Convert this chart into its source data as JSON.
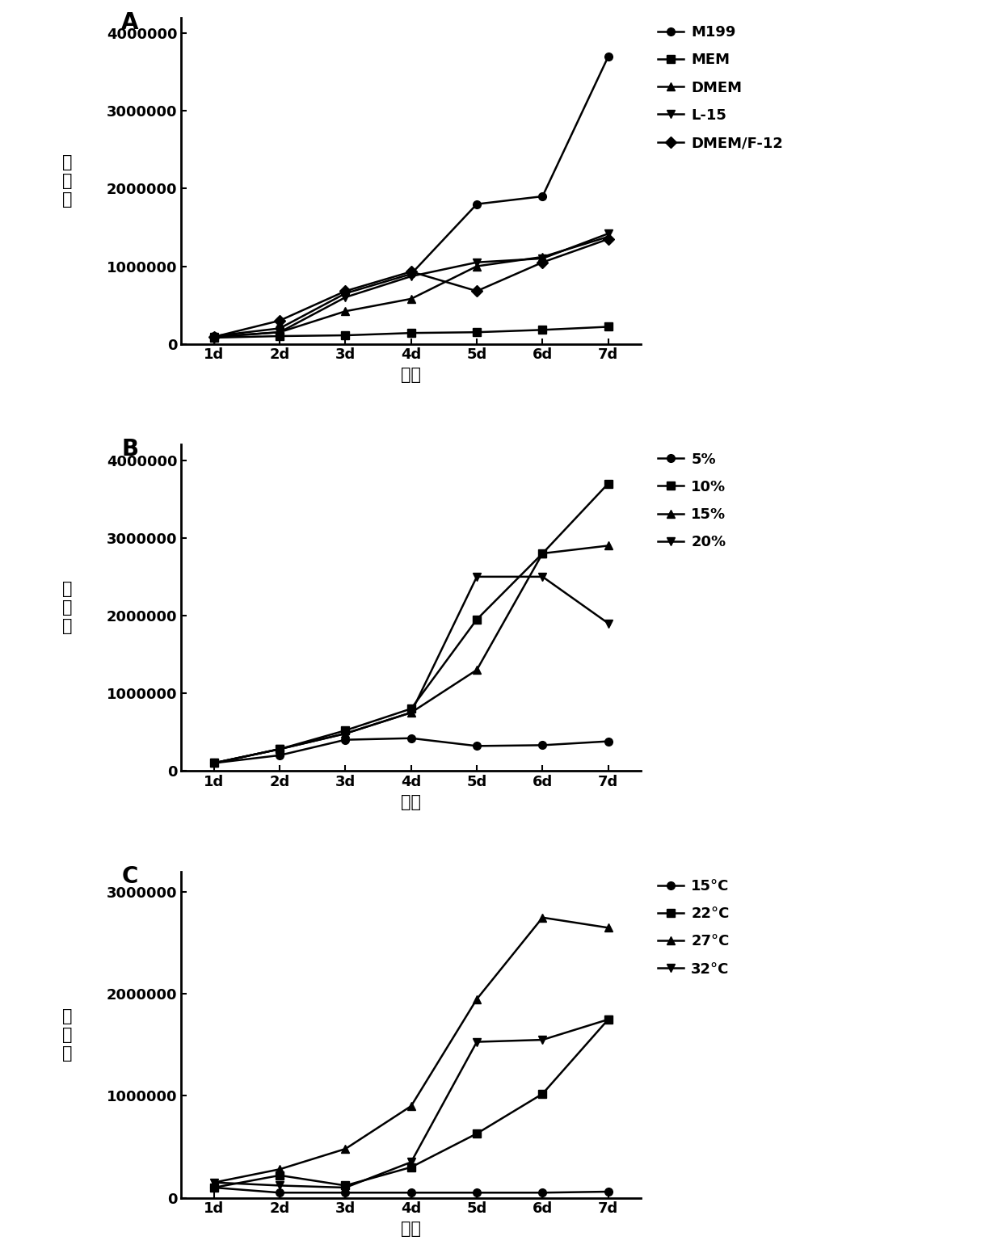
{
  "panel_A": {
    "x": [
      1,
      2,
      3,
      4,
      5,
      6,
      7
    ],
    "x_labels": [
      "1d",
      "2d",
      "3d",
      "4d",
      "5d",
      "6d",
      "7d"
    ],
    "series": {
      "M199": [
        100000,
        200000,
        650000,
        900000,
        1800000,
        1900000,
        3700000
      ],
      "MEM": [
        80000,
        100000,
        110000,
        140000,
        150000,
        180000,
        220000
      ],
      "DMEM": [
        90000,
        150000,
        420000,
        580000,
        1000000,
        1120000,
        1380000
      ],
      "L-15": [
        90000,
        150000,
        600000,
        870000,
        1050000,
        1100000,
        1420000
      ],
      "DMEM/F-12": [
        90000,
        300000,
        680000,
        930000,
        680000,
        1050000,
        1350000
      ]
    },
    "markers": {
      "M199": "o",
      "MEM": "s",
      "DMEM": "^",
      "L-15": "v",
      "DMEM/F-12": "D"
    },
    "ylim": [
      0,
      4200000
    ],
    "yticks": [
      0,
      1000000,
      2000000,
      3000000,
      4000000
    ],
    "ylabel": "细\n胞\n数",
    "xlabel": "时间",
    "panel_label": "A"
  },
  "panel_B": {
    "x": [
      1,
      2,
      3,
      4,
      5,
      6,
      7
    ],
    "x_labels": [
      "1d",
      "2d",
      "3d",
      "4d",
      "5d",
      "6d",
      "7d"
    ],
    "series": {
      "5%": [
        100000,
        200000,
        400000,
        420000,
        320000,
        330000,
        380000
      ],
      "10%": [
        100000,
        280000,
        520000,
        800000,
        1950000,
        2800000,
        3700000
      ],
      "15%": [
        100000,
        280000,
        480000,
        750000,
        1300000,
        2800000,
        2900000
      ],
      "20%": [
        100000,
        280000,
        480000,
        750000,
        2500000,
        2500000,
        1900000
      ]
    },
    "markers": {
      "5%": "o",
      "10%": "s",
      "15%": "^",
      "20%": "v"
    },
    "ylim": [
      0,
      4200000
    ],
    "yticks": [
      0,
      1000000,
      2000000,
      3000000,
      4000000
    ],
    "ylabel": "细\n胞\n数",
    "xlabel": "时间",
    "panel_label": "B"
  },
  "panel_C": {
    "x": [
      1,
      2,
      3,
      4,
      5,
      6,
      7
    ],
    "x_labels": [
      "1d",
      "2d",
      "3d",
      "4d",
      "5d",
      "6d",
      "7d"
    ],
    "series": {
      "15°C": [
        100000,
        50000,
        50000,
        50000,
        50000,
        50000,
        60000
      ],
      "22°C": [
        100000,
        220000,
        120000,
        300000,
        630000,
        1020000,
        1750000
      ],
      "27°C": [
        150000,
        280000,
        480000,
        900000,
        1950000,
        2750000,
        2650000
      ],
      "32°C": [
        150000,
        120000,
        100000,
        350000,
        1530000,
        1550000,
        1750000
      ]
    },
    "markers": {
      "15°C": "o",
      "22°C": "s",
      "27°C": "^",
      "32°C": "v"
    },
    "ylim": [
      0,
      3200000
    ],
    "yticks": [
      0,
      1000000,
      2000000,
      3000000
    ],
    "ylabel": "细\n胞\n数",
    "xlabel": "时间",
    "panel_label": "C"
  },
  "line_color": "#000000",
  "marker_size": 7,
  "linewidth": 1.8,
  "font_size_label": 15,
  "font_size_tick": 13,
  "font_size_panel": 20,
  "font_size_legend": 13
}
